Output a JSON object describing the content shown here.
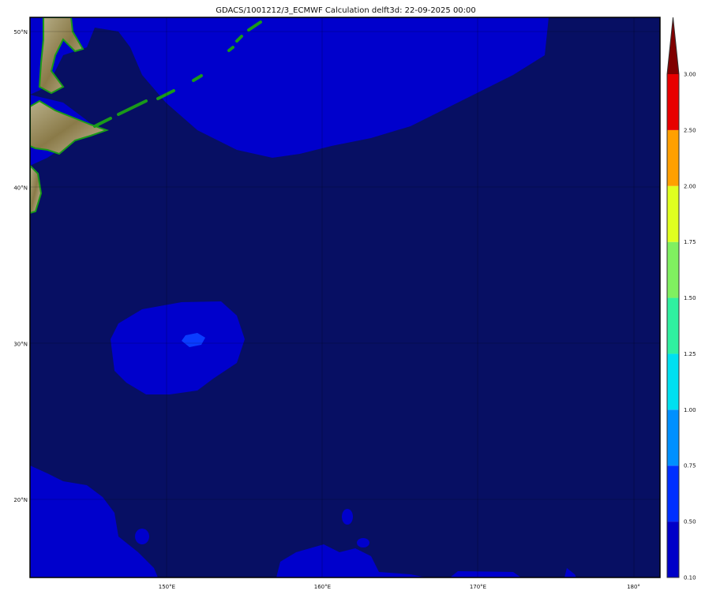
{
  "title": "GDACS/1001212/3_ECMWF Calculation delft3d: 22-09-2025 00:00",
  "map": {
    "lon_range": [
      141.2,
      181.7
    ],
    "lat_range": [
      15.0,
      50.9
    ],
    "lon_ticks": [
      {
        "value": 150,
        "label": "150°E"
      },
      {
        "value": 160,
        "label": "160°E"
      },
      {
        "value": 170,
        "label": "170°E"
      },
      {
        "value": 180,
        "label": "180°"
      }
    ],
    "lat_ticks": [
      {
        "value": 50,
        "label": "50°N"
      },
      {
        "value": 40,
        "label": "40°N"
      },
      {
        "value": 30,
        "label": "30°N"
      },
      {
        "value": 20,
        "label": "20°N"
      }
    ],
    "colors": {
      "background": "#070f63",
      "low_band": "#0000cc",
      "mid_band": "#0a3cff",
      "land": "#9a8f5a",
      "coast": "#1a9a1a"
    }
  },
  "colorbar": {
    "levels": [
      "0.10",
      "0.50",
      "0.75",
      "1.00",
      "1.25",
      "1.50",
      "1.75",
      "2.00",
      "2.50",
      "3.00"
    ],
    "colors": [
      "#0000c8",
      "#0030ff",
      "#0090ff",
      "#00e0f0",
      "#30f0a0",
      "#80f060",
      "#e0ff20",
      "#ffa000",
      "#e80000"
    ],
    "extend_color": "#800000"
  }
}
